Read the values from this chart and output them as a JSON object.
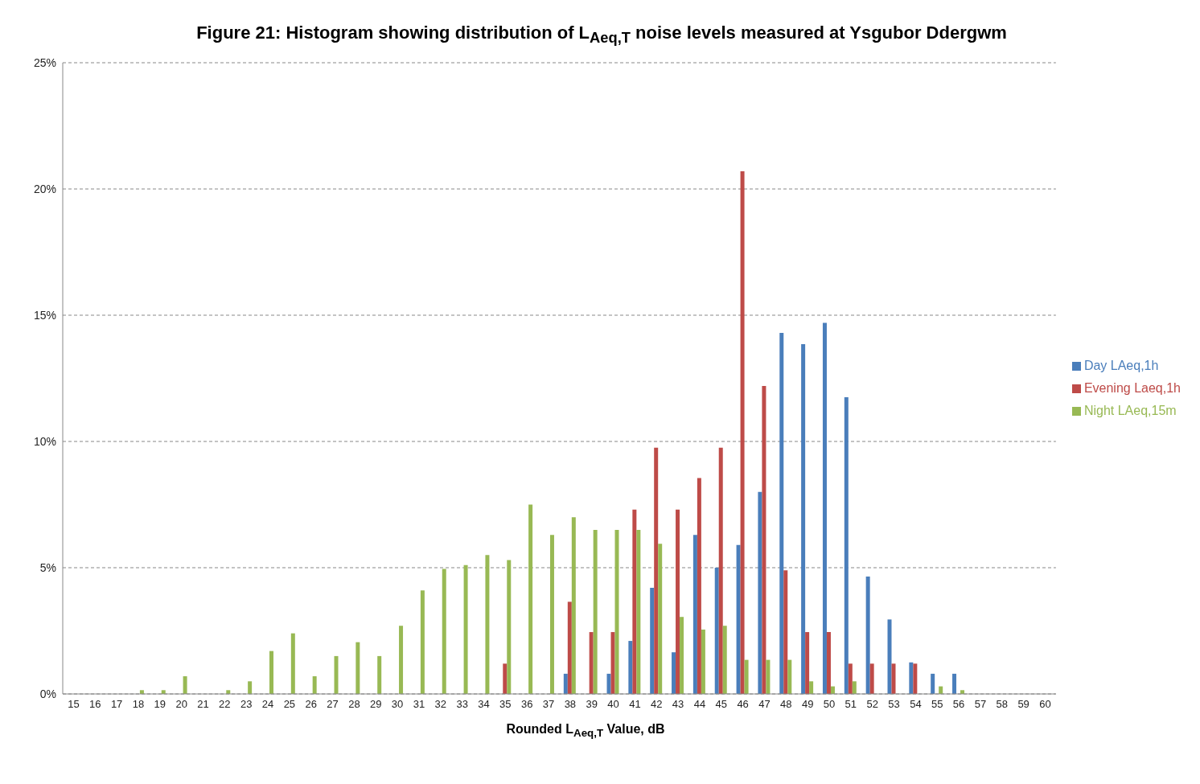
{
  "chart_data": {
    "type": "bar",
    "title": "Figure 21: Histogram showing distribution of L$_{Aeq,T}$ noise levels measured at Ysgubor Ddergwm",
    "xlabel": "Rounded L$_{Aeq,T}$ Value, dB",
    "categories": [
      "15",
      "16",
      "17",
      "18",
      "19",
      "20",
      "21",
      "22",
      "23",
      "24",
      "25",
      "26",
      "27",
      "28",
      "29",
      "30",
      "31",
      "32",
      "33",
      "34",
      "35",
      "36",
      "37",
      "38",
      "39",
      "40",
      "41",
      "42",
      "43",
      "44",
      "45",
      "46",
      "47",
      "48",
      "49",
      "50",
      "51",
      "52",
      "53",
      "54",
      "55",
      "56",
      "57",
      "58",
      "59",
      "60"
    ],
    "series": [
      {
        "name": "Day LAeq,1h",
        "color": "#4a7ebb",
        "values": [
          0,
          0,
          0,
          0,
          0,
          0,
          0,
          0,
          0,
          0,
          0,
          0,
          0,
          0,
          0,
          0,
          0,
          0,
          0,
          0,
          0,
          0,
          0,
          0.8,
          0,
          0.8,
          2.1,
          4.2,
          1.65,
          6.3,
          5.0,
          5.9,
          8.0,
          14.3,
          13.85,
          14.7,
          11.75,
          4.65,
          2.95,
          1.25,
          0.8,
          0.8,
          0,
          0,
          0,
          0
        ]
      },
      {
        "name": "Evening Laeq,1h",
        "color": "#be4b48",
        "values": [
          0,
          0,
          0,
          0,
          0,
          0,
          0,
          0,
          0,
          0,
          0,
          0,
          0,
          0,
          0,
          0,
          0,
          0,
          0,
          0,
          1.2,
          0,
          0,
          3.65,
          2.45,
          2.45,
          7.3,
          9.75,
          7.3,
          8.55,
          9.75,
          20.7,
          12.2,
          4.9,
          2.45,
          2.45,
          1.2,
          1.2,
          1.2,
          1.2,
          0,
          0,
          0,
          0,
          0,
          0
        ]
      },
      {
        "name": "Night LAeq,15m",
        "color": "#98b954",
        "values": [
          0,
          0,
          0,
          0.15,
          0.15,
          0.7,
          0,
          0.15,
          0.5,
          1.7,
          2.4,
          0.7,
          1.5,
          2.05,
          1.5,
          2.7,
          4.1,
          4.95,
          5.1,
          5.5,
          5.3,
          7.5,
          6.3,
          7.0,
          6.5,
          6.5,
          6.5,
          5.95,
          3.05,
          2.55,
          2.7,
          1.35,
          1.35,
          1.35,
          0.5,
          0.3,
          0.5,
          0,
          0,
          0,
          0.3,
          0.15,
          0,
          0,
          0,
          0
        ]
      }
    ],
    "ylim": [
      0,
      25
    ],
    "yticks": [
      {
        "value": 0,
        "label": "0%"
      },
      {
        "value": 5,
        "label": "5%"
      },
      {
        "value": 10,
        "label": "10%"
      },
      {
        "value": 15,
        "label": "15%"
      },
      {
        "value": 20,
        "label": "20%"
      },
      {
        "value": 25,
        "label": "25%"
      }
    ],
    "grid": "y",
    "legend": "right"
  }
}
